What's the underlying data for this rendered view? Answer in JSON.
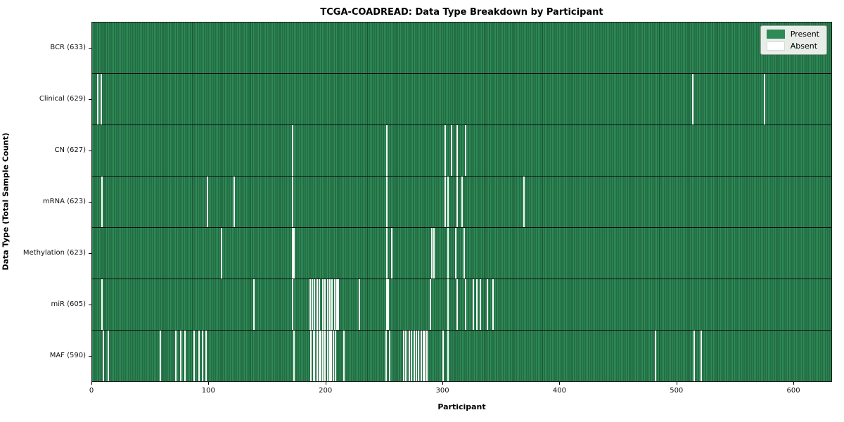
{
  "chart_data": {
    "type": "heatmap",
    "title": "TCGA-COADREAD: Data Type Breakdown by Participant",
    "xlabel": "Participant",
    "ylabel": "Data Type (Total Sample Count)",
    "n_participants": 633,
    "x_ticks": [
      0,
      100,
      200,
      300,
      400,
      500,
      600
    ],
    "grid": false,
    "colors": {
      "present": "#2e8b57",
      "present_edge": "#1b5233",
      "absent": "#ffffff"
    },
    "legend": {
      "position": "upper right",
      "items": [
        {
          "label": "Present",
          "color": "#2e8b57"
        },
        {
          "label": "Absent",
          "color": "#ffffff"
        }
      ]
    },
    "rows": [
      {
        "label": "BCR (633)",
        "data_type": "BCR",
        "total_samples": 633,
        "absent_participants": []
      },
      {
        "label": "Clinical (629)",
        "data_type": "Clinical",
        "total_samples": 629,
        "absent_participants": [
          4,
          7,
          514,
          575
        ]
      },
      {
        "label": "CN (627)",
        "data_type": "CN",
        "total_samples": 627,
        "absent_participants": [
          171,
          252,
          302,
          307,
          312,
          319
        ]
      },
      {
        "label": "mRNA (623)",
        "data_type": "mRNA",
        "total_samples": 623,
        "absent_participants": [
          8,
          98,
          121,
          171,
          252,
          302,
          304,
          312,
          316,
          369
        ]
      },
      {
        "label": "Methylation (623)",
        "data_type": "Methylation",
        "total_samples": 623,
        "absent_participants": [
          110,
          171,
          172,
          252,
          256,
          290,
          292,
          304,
          311,
          318
        ]
      },
      {
        "label": "miR (605)",
        "data_type": "miR",
        "total_samples": 605,
        "absent_participants": [
          8,
          138,
          171,
          186,
          188,
          190,
          192,
          194,
          197,
          199,
          201,
          203,
          205,
          207,
          209,
          210,
          228,
          252,
          253,
          289,
          304,
          312,
          319,
          326,
          329,
          332,
          338,
          343
        ]
      },
      {
        "label": "MAF (590)",
        "data_type": "MAF",
        "total_samples": 590,
        "absent_participants": [
          9,
          13,
          58,
          71,
          75,
          79,
          87,
          91,
          94,
          97,
          172,
          187,
          189,
          190,
          192,
          194,
          195,
          197,
          199,
          201,
          203,
          204,
          206,
          208,
          215,
          251,
          254,
          266,
          268,
          271,
          273,
          275,
          277,
          279,
          281,
          283,
          284,
          286,
          300,
          304,
          482,
          515,
          521
        ]
      }
    ]
  }
}
